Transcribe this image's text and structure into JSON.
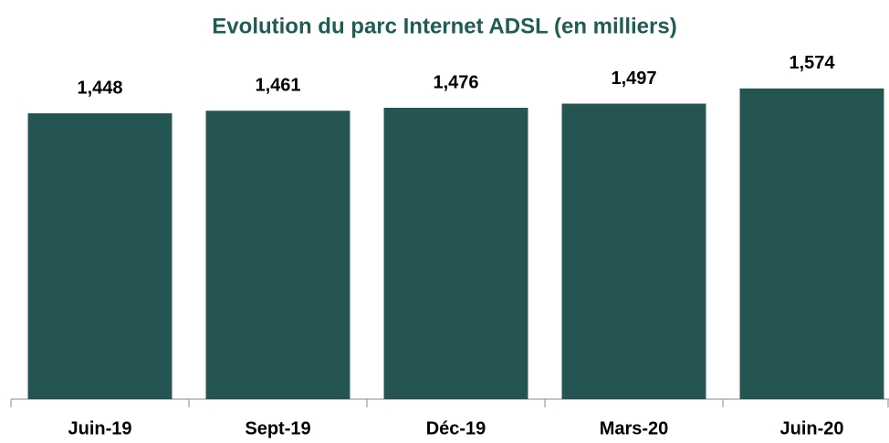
{
  "chart_data": {
    "type": "bar",
    "title": "Evolution du parc Internet ADSL (en milliers)",
    "categories": [
      "Juin-19",
      "Sept-19",
      "Déc-19",
      "Mars-20",
      "Juin-20"
    ],
    "values": [
      1448,
      1461,
      1476,
      1497,
      1574
    ],
    "value_labels": [
      "1,448",
      "1,461",
      "1,476",
      "1,497",
      "1,574"
    ],
    "color": "#245553",
    "ylim": [
      0,
      1800
    ]
  }
}
